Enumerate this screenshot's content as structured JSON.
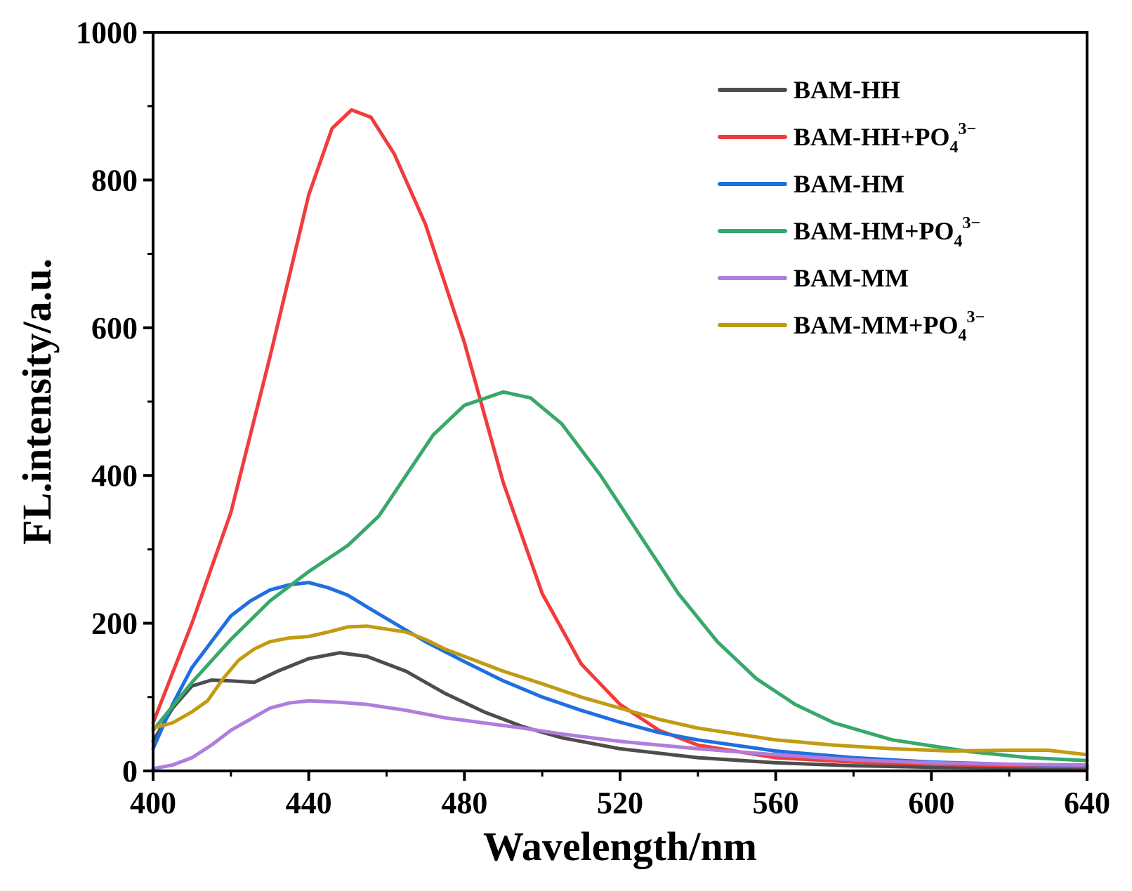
{
  "chart_data": {
    "type": "line",
    "xlabel": "Wavelength/nm",
    "ylabel": "FL.intensity/a.u.",
    "xlim": [
      400,
      640
    ],
    "ylim": [
      0,
      1000
    ],
    "x_ticks": [
      400,
      440,
      480,
      520,
      560,
      600,
      640
    ],
    "y_ticks": [
      0,
      200,
      400,
      600,
      800,
      1000
    ],
    "x_tick_labels": [
      "400",
      "440",
      "480",
      "520",
      "560",
      "600",
      "640"
    ],
    "y_tick_labels": [
      "0",
      "200",
      "400",
      "600",
      "800",
      "1000"
    ],
    "grid": false,
    "legend_position": "top-right",
    "series": [
      {
        "name": "BAM-HH",
        "label_main": "BAM-HH",
        "label_sub": "",
        "label_sup": "",
        "color": "#4d4d4d",
        "points": [
          [
            400,
            40
          ],
          [
            405,
            85
          ],
          [
            410,
            115
          ],
          [
            415,
            123
          ],
          [
            420,
            122
          ],
          [
            426,
            120
          ],
          [
            432,
            135
          ],
          [
            440,
            152
          ],
          [
            448,
            160
          ],
          [
            455,
            155
          ],
          [
            465,
            135
          ],
          [
            475,
            105
          ],
          [
            485,
            80
          ],
          [
            495,
            60
          ],
          [
            505,
            45
          ],
          [
            520,
            30
          ],
          [
            540,
            18
          ],
          [
            560,
            11
          ],
          [
            580,
            7
          ],
          [
            600,
            5
          ],
          [
            620,
            4
          ],
          [
            640,
            3
          ]
        ]
      },
      {
        "name": "BAM-HH+PO43−",
        "label_main": "BAM-HH+PO",
        "label_sub": "4",
        "label_sup": "3−",
        "color": "#f03c3c",
        "points": [
          [
            400,
            65
          ],
          [
            410,
            200
          ],
          [
            420,
            350
          ],
          [
            430,
            560
          ],
          [
            440,
            780
          ],
          [
            446,
            870
          ],
          [
            451,
            895
          ],
          [
            456,
            885
          ],
          [
            462,
            835
          ],
          [
            470,
            740
          ],
          [
            480,
            580
          ],
          [
            490,
            390
          ],
          [
            500,
            240
          ],
          [
            510,
            145
          ],
          [
            520,
            90
          ],
          [
            530,
            55
          ],
          [
            540,
            35
          ],
          [
            560,
            18
          ],
          [
            580,
            12
          ],
          [
            600,
            9
          ],
          [
            620,
            7
          ],
          [
            640,
            6
          ]
        ]
      },
      {
        "name": "BAM-HM",
        "label_main": "BAM-HM",
        "label_sub": "",
        "label_sup": "",
        "color": "#1f6fe0",
        "points": [
          [
            400,
            30
          ],
          [
            405,
            90
          ],
          [
            410,
            140
          ],
          [
            415,
            175
          ],
          [
            420,
            210
          ],
          [
            425,
            230
          ],
          [
            430,
            245
          ],
          [
            435,
            252
          ],
          [
            440,
            255
          ],
          [
            445,
            248
          ],
          [
            450,
            238
          ],
          [
            455,
            222
          ],
          [
            462,
            200
          ],
          [
            470,
            175
          ],
          [
            480,
            148
          ],
          [
            490,
            122
          ],
          [
            500,
            100
          ],
          [
            510,
            82
          ],
          [
            520,
            66
          ],
          [
            530,
            52
          ],
          [
            540,
            42
          ],
          [
            560,
            27
          ],
          [
            580,
            18
          ],
          [
            600,
            12
          ],
          [
            620,
            9
          ],
          [
            640,
            7
          ]
        ]
      },
      {
        "name": "BAM-HM+PO43−",
        "label_main": "BAM-HM+PO",
        "label_sub": "4",
        "label_sup": "3−",
        "color": "#37a86a",
        "points": [
          [
            400,
            55
          ],
          [
            410,
            120
          ],
          [
            420,
            178
          ],
          [
            430,
            230
          ],
          [
            440,
            270
          ],
          [
            450,
            305
          ],
          [
            458,
            345
          ],
          [
            465,
            400
          ],
          [
            472,
            455
          ],
          [
            480,
            495
          ],
          [
            490,
            513
          ],
          [
            497,
            505
          ],
          [
            505,
            470
          ],
          [
            515,
            400
          ],
          [
            525,
            320
          ],
          [
            535,
            240
          ],
          [
            545,
            175
          ],
          [
            555,
            125
          ],
          [
            565,
            90
          ],
          [
            575,
            65
          ],
          [
            590,
            42
          ],
          [
            610,
            26
          ],
          [
            625,
            18
          ],
          [
            640,
            14
          ]
        ]
      },
      {
        "name": "BAM-MM",
        "label_main": "BAM-MM",
        "label_sub": "",
        "label_sup": "",
        "color": "#b07ddc",
        "points": [
          [
            400,
            3
          ],
          [
            405,
            8
          ],
          [
            410,
            18
          ],
          [
            415,
            35
          ],
          [
            420,
            55
          ],
          [
            425,
            70
          ],
          [
            430,
            85
          ],
          [
            435,
            92
          ],
          [
            440,
            95
          ],
          [
            448,
            93
          ],
          [
            455,
            90
          ],
          [
            465,
            82
          ],
          [
            475,
            72
          ],
          [
            485,
            65
          ],
          [
            495,
            58
          ],
          [
            505,
            50
          ],
          [
            520,
            40
          ],
          [
            540,
            30
          ],
          [
            560,
            22
          ],
          [
            580,
            15
          ],
          [
            600,
            11
          ],
          [
            620,
            9
          ],
          [
            640,
            8
          ]
        ]
      },
      {
        "name": "BAM-MM+PO43−",
        "label_main": "BAM-MM+PO",
        "label_sub": "4",
        "label_sup": "3−",
        "color": "#c29b12",
        "points": [
          [
            400,
            58
          ],
          [
            405,
            65
          ],
          [
            410,
            80
          ],
          [
            414,
            95
          ],
          [
            418,
            125
          ],
          [
            422,
            150
          ],
          [
            426,
            165
          ],
          [
            430,
            175
          ],
          [
            435,
            180
          ],
          [
            440,
            182
          ],
          [
            445,
            188
          ],
          [
            450,
            195
          ],
          [
            455,
            196
          ],
          [
            460,
            192
          ],
          [
            465,
            188
          ],
          [
            470,
            178
          ],
          [
            475,
            165
          ],
          [
            480,
            155
          ],
          [
            490,
            135
          ],
          [
            500,
            118
          ],
          [
            510,
            100
          ],
          [
            520,
            85
          ],
          [
            530,
            70
          ],
          [
            540,
            58
          ],
          [
            550,
            50
          ],
          [
            560,
            42
          ],
          [
            575,
            35
          ],
          [
            590,
            30
          ],
          [
            605,
            27
          ],
          [
            620,
            28
          ],
          [
            630,
            28
          ],
          [
            640,
            22
          ]
        ]
      }
    ]
  }
}
